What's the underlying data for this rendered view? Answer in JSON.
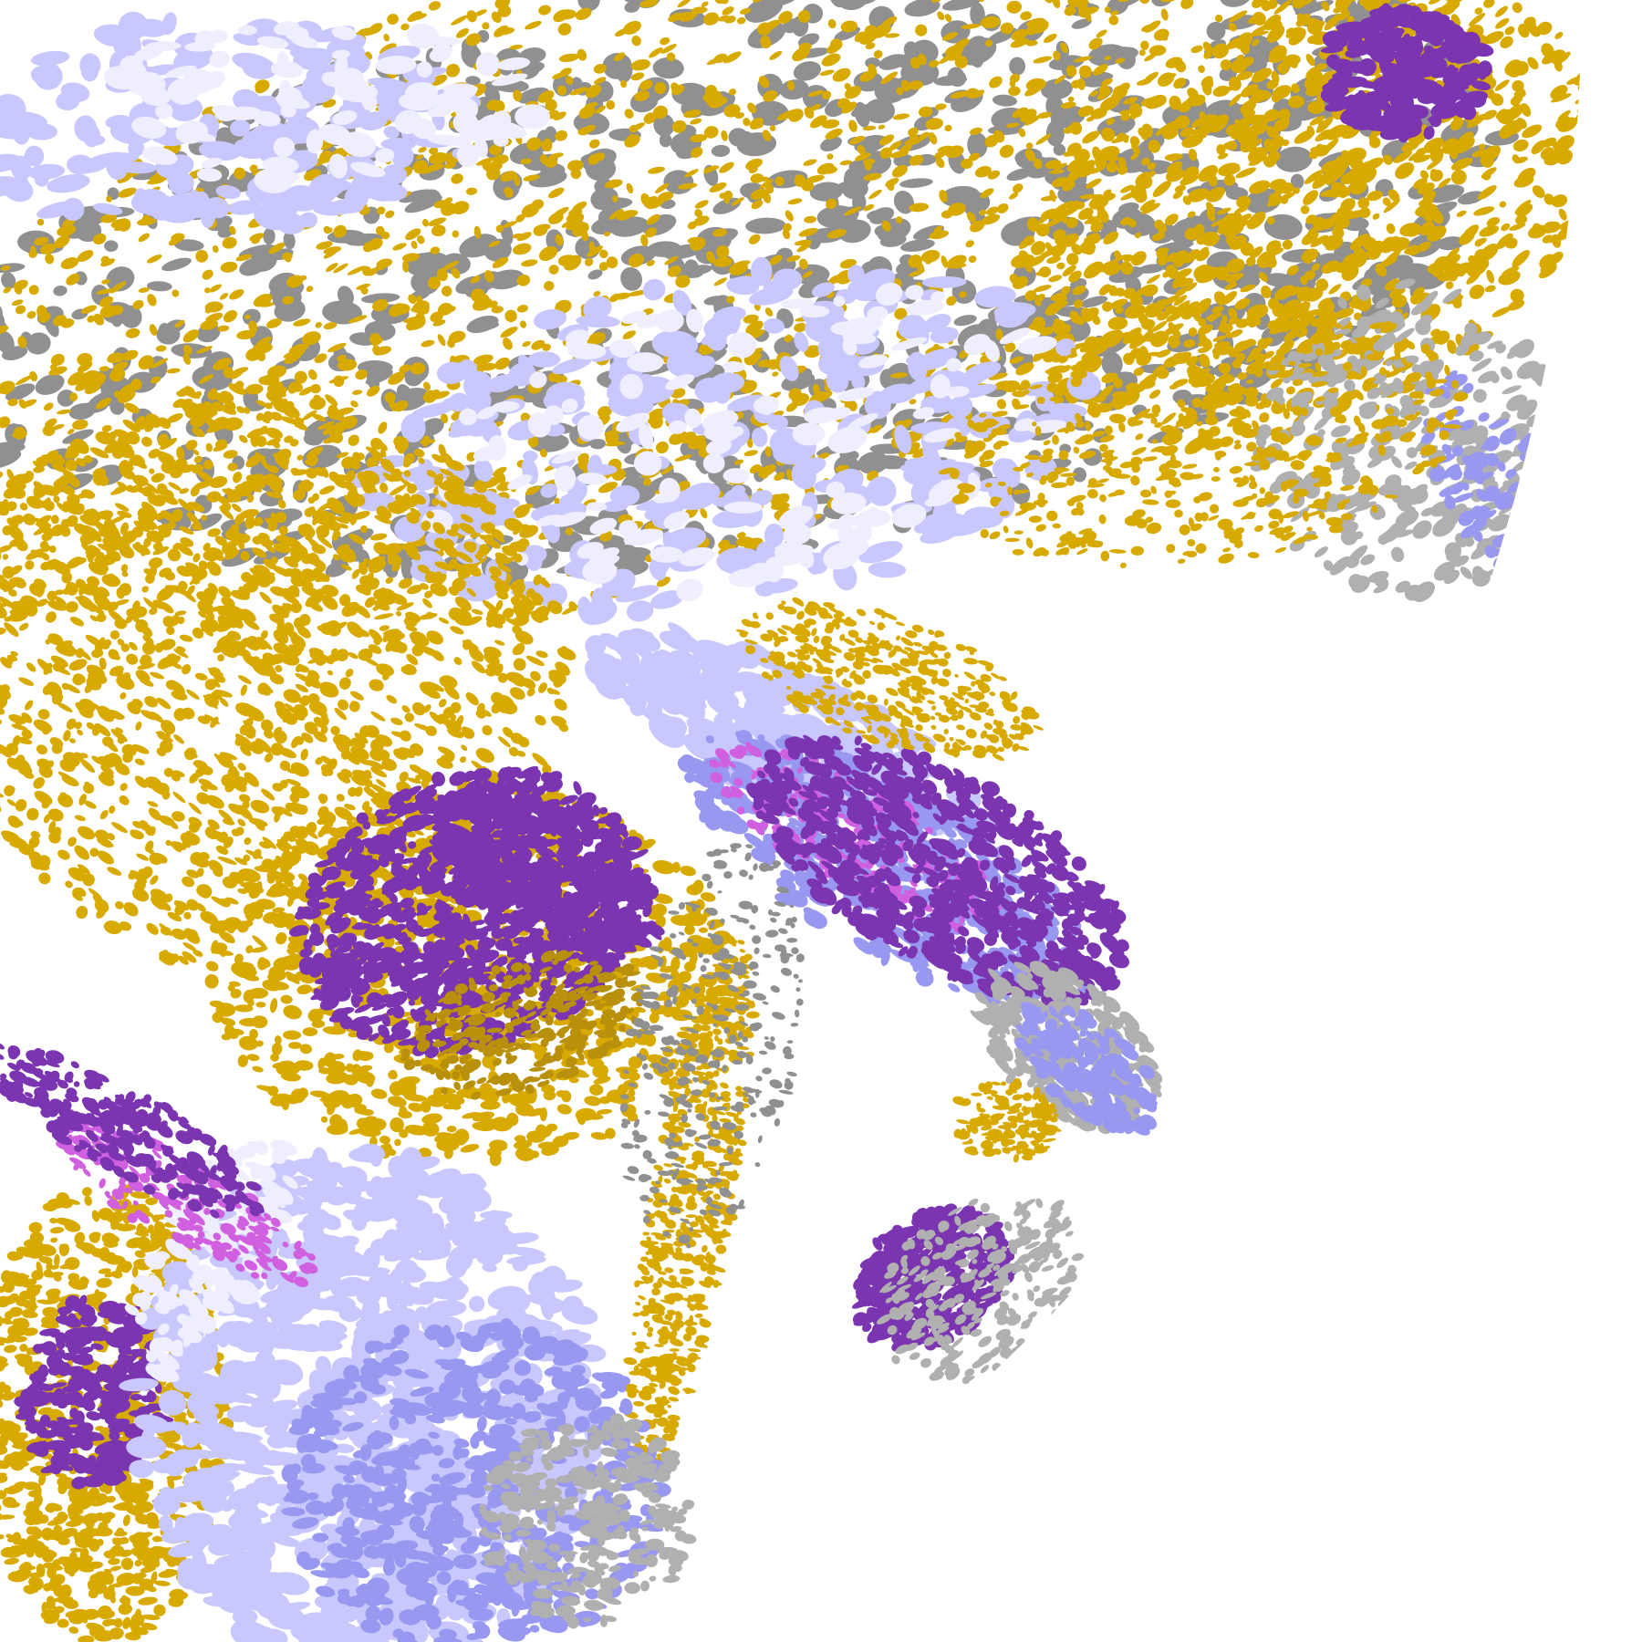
{
  "map": {
    "kind": "satellite-cloud-classification",
    "background": "#ffffff",
    "palette": {
      "gold": "#d8aa00",
      "dark_gold": "#b8900c",
      "purple": "#7b35b0",
      "magenta": "#d060e0",
      "lavender": "#c8c8ff",
      "periwinkle": "#9898f0",
      "pale": "#eeeeff",
      "gray": "#909090",
      "light_gray": "#b0b0b0"
    }
  }
}
